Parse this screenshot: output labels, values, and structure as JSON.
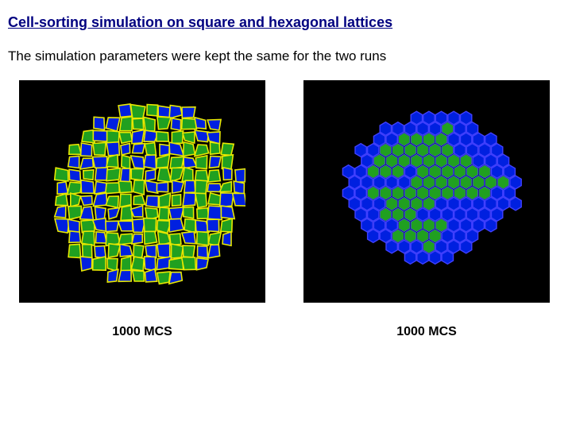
{
  "title": "Cell-sorting simulation on square and hexagonal lattices",
  "subtitle": "The simulation parameters were kept the same for the two runs",
  "panels": [
    {
      "caption": "1000 MCS",
      "lattice": "square"
    },
    {
      "caption": "1000 MCS",
      "lattice": "hexagonal"
    }
  ],
  "colors": {
    "background": "#000000",
    "cell_blue": "#0020e0",
    "cell_green": "#20a020",
    "border_yellow": "#e8e800",
    "border_blue": "#4040ff",
    "page_bg": "#ffffff",
    "title_color": "#000080"
  },
  "sim_square": {
    "type": "cell-lattice",
    "lattice": "square",
    "grid": 16,
    "cluster_radius": 7.2,
    "cell_size": 14,
    "cell_gap": 2,
    "rows": [
      "................",
      "......bggbbb....",
      "....bbggggbgbb..",
      "...gbggbbgggbbb.",
      "..gbgbbbgbbgggg.",
      "..bbbggbbggbgbg.",
      ".gbgbgbgbgggggbb",
      ".bgbbgggbbbbgbgb",
      ".ggbbgggbggbggbb",
      ".bgbbbgbggbggbb.",
      ".bbgbbbbggbgbbg.",
      "..bgbggbgggbggb.",
      "..ggbgbgbbggbb..",
      "...bggggbbggb...",
      ".....bbgbgb.....",
      "................"
    ],
    "border_color": "#e8e800"
  },
  "sim_hex": {
    "type": "cell-lattice",
    "lattice": "hexagonal",
    "grid": 16,
    "cluster_radius": 7.0,
    "hex_radius": 9,
    "rows": [
      "................",
      "......bbbbb.....",
      "....bbbbbgbb....",
      "...bbggggbbbb...",
      "..bbggggggbbbb..",
      "..bggggggggbbb..",
      ".bbgggbggggggbb.",
      ".bbbbbggggggggb.",
      ".bbggggggggggbb.",
      ".bbbggggbbbbbbb.",
      "..bbgggbbbbbbb..",
      "..bbbggggbbbb...",
      "...bbggggbbb....",
      "....bbbgbbb.....",
      "......bbbb......",
      "................"
    ],
    "border_color": "#4040ff"
  }
}
